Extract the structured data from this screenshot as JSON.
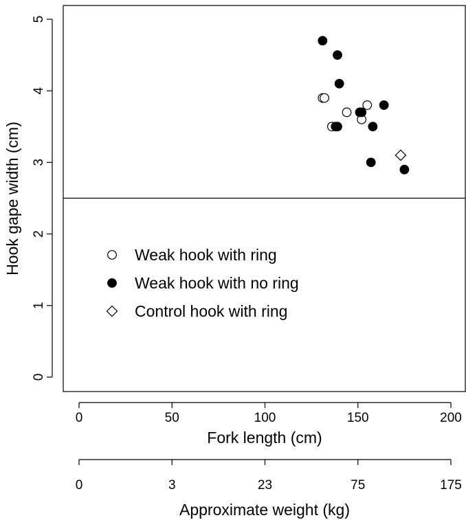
{
  "chart_data": {
    "type": "scatter",
    "xlabel": "Fork length (cm)",
    "ylabel": "Hook gape width (cm)",
    "xlim": [
      -8,
      207
    ],
    "ylim": [
      -0.2,
      5.2
    ],
    "x_ticks": [
      "0",
      "50",
      "100",
      "150",
      "200"
    ],
    "y_ticks": [
      "0",
      "1",
      "2",
      "3",
      "4",
      "5"
    ],
    "reference_line_y": 2.5,
    "secondary_axis": {
      "label": "Approximate weight (kg)",
      "ticks": [
        {
          "fork_length": 0,
          "label": "0"
        },
        {
          "fork_length": 50,
          "label": "3"
        },
        {
          "fork_length": 100,
          "label": "23"
        },
        {
          "fork_length": 150,
          "label": "75"
        },
        {
          "fork_length": 200,
          "label": "175"
        }
      ]
    },
    "legend_position": "center-left",
    "series": [
      {
        "name": "Weak hook with ring",
        "marker": "open-circle",
        "points": [
          [
            131,
            3.9
          ],
          [
            132,
            3.9
          ],
          [
            136,
            3.5
          ],
          [
            144,
            3.7
          ],
          [
            152,
            3.6
          ],
          [
            155,
            3.8
          ]
        ]
      },
      {
        "name": "Weak hook with no ring",
        "marker": "filled-circle",
        "points": [
          [
            131,
            4.7
          ],
          [
            139,
            4.5
          ],
          [
            140,
            4.1
          ],
          [
            138,
            3.5
          ],
          [
            139,
            3.5
          ],
          [
            151,
            3.7
          ],
          [
            152,
            3.7
          ],
          [
            164,
            3.8
          ],
          [
            158,
            3.5
          ],
          [
            157,
            3.0
          ],
          [
            175,
            2.9
          ]
        ]
      },
      {
        "name": "Control hook with ring",
        "marker": "open-diamond",
        "points": [
          [
            173,
            3.1
          ]
        ]
      }
    ]
  }
}
